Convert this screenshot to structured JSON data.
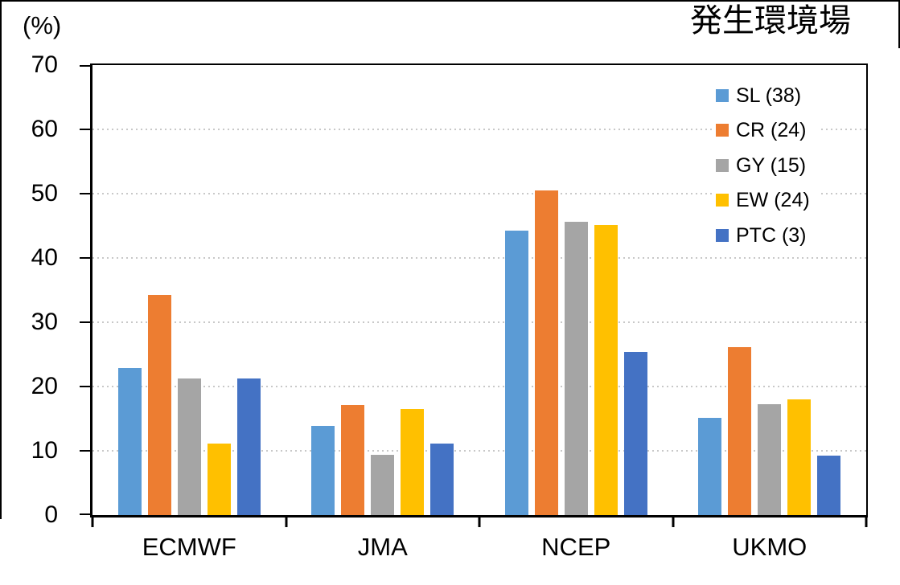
{
  "chart_data": {
    "type": "bar",
    "title": "発生環境場",
    "ylabel": "(%)",
    "xlabel": "",
    "categories": [
      "ECMWF",
      "JMA",
      "NCEP",
      "UKMO"
    ],
    "series": [
      {
        "name": "SL (38)",
        "color": "#5B9BD5",
        "values": [
          22.9,
          13.9,
          44.3,
          15.1
        ]
      },
      {
        "name": "CR (24)",
        "color": "#ED7D31",
        "values": [
          34.2,
          17.1,
          50.5,
          26.1
        ]
      },
      {
        "name": "GY (15)",
        "color": "#A5A5A5",
        "values": [
          21.3,
          9.4,
          45.6,
          17.3
        ]
      },
      {
        "name": "EW (24)",
        "color": "#FFC000",
        "values": [
          11.1,
          16.5,
          45.1,
          18.0
        ]
      },
      {
        "name": "PTC (3)",
        "color": "#4472C4",
        "values": [
          21.2,
          11.1,
          25.4,
          9.2
        ]
      }
    ],
    "ylim": [
      0,
      70
    ],
    "yticks": [
      0,
      10,
      20,
      30,
      40,
      50,
      60,
      70
    ],
    "grid": "horizontal-dotted",
    "gridline_color": "#c8c8c8",
    "axis_color": "#000000",
    "legend_position": "top-right-inside"
  }
}
